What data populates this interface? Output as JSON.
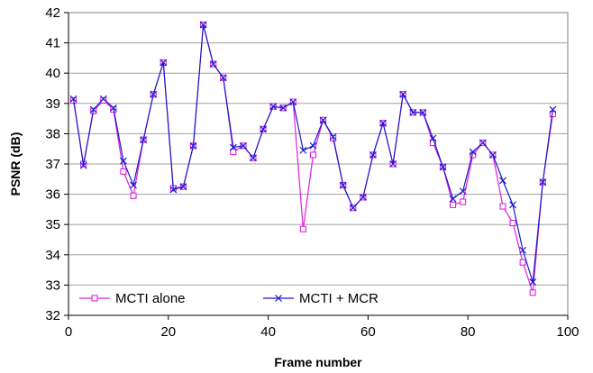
{
  "chart_data": {
    "type": "line",
    "xlabel": "Frame number",
    "ylabel": "PSNR (dB)",
    "xlim": [
      0,
      100
    ],
    "ylim": [
      32,
      42
    ],
    "x_ticks": [
      0,
      20,
      40,
      60,
      80,
      100
    ],
    "y_ticks": [
      32,
      33,
      34,
      35,
      36,
      37,
      38,
      39,
      40,
      41,
      42
    ],
    "grid": "horizontal",
    "legend_position": "bottom-center",
    "x": [
      1,
      3,
      5,
      7,
      9,
      11,
      13,
      15,
      17,
      19,
      21,
      23,
      25,
      27,
      29,
      31,
      33,
      35,
      37,
      39,
      41,
      43,
      45,
      47,
      49,
      51,
      53,
      55,
      57,
      59,
      61,
      63,
      65,
      67,
      69,
      71,
      73,
      75,
      77,
      79,
      81,
      83,
      85,
      87,
      89,
      91,
      93,
      95,
      97
    ],
    "series": [
      {
        "name": "MCTI alone",
        "color": "#e020e0",
        "marker": "square",
        "values": [
          39.1,
          37.0,
          38.75,
          39.1,
          38.8,
          36.75,
          35.95,
          37.8,
          39.3,
          40.35,
          36.2,
          36.25,
          37.6,
          41.6,
          40.3,
          39.85,
          37.4,
          37.6,
          37.2,
          38.15,
          38.9,
          38.85,
          39.05,
          34.85,
          37.3,
          38.45,
          37.85,
          36.3,
          35.55,
          35.9,
          37.3,
          38.35,
          37.0,
          39.3,
          38.7,
          38.7,
          37.7,
          36.9,
          35.65,
          35.75,
          37.3,
          37.7,
          37.3,
          35.6,
          35.05,
          33.75,
          32.75,
          36.4,
          38.65
        ]
      },
      {
        "name": "MCTI + MCR",
        "color": "#1a1acc",
        "marker": "x",
        "values": [
          39.15,
          36.95,
          38.8,
          39.15,
          38.85,
          37.1,
          36.3,
          37.8,
          39.3,
          40.35,
          36.15,
          36.25,
          37.6,
          41.6,
          40.3,
          39.85,
          37.55,
          37.6,
          37.2,
          38.15,
          38.9,
          38.85,
          39.05,
          37.45,
          37.6,
          38.45,
          37.9,
          36.3,
          35.55,
          35.9,
          37.3,
          38.35,
          37.0,
          39.3,
          38.7,
          38.7,
          37.85,
          36.9,
          35.85,
          36.1,
          37.4,
          37.7,
          37.3,
          36.45,
          35.65,
          34.15,
          33.1,
          36.4,
          38.8
        ]
      }
    ]
  }
}
